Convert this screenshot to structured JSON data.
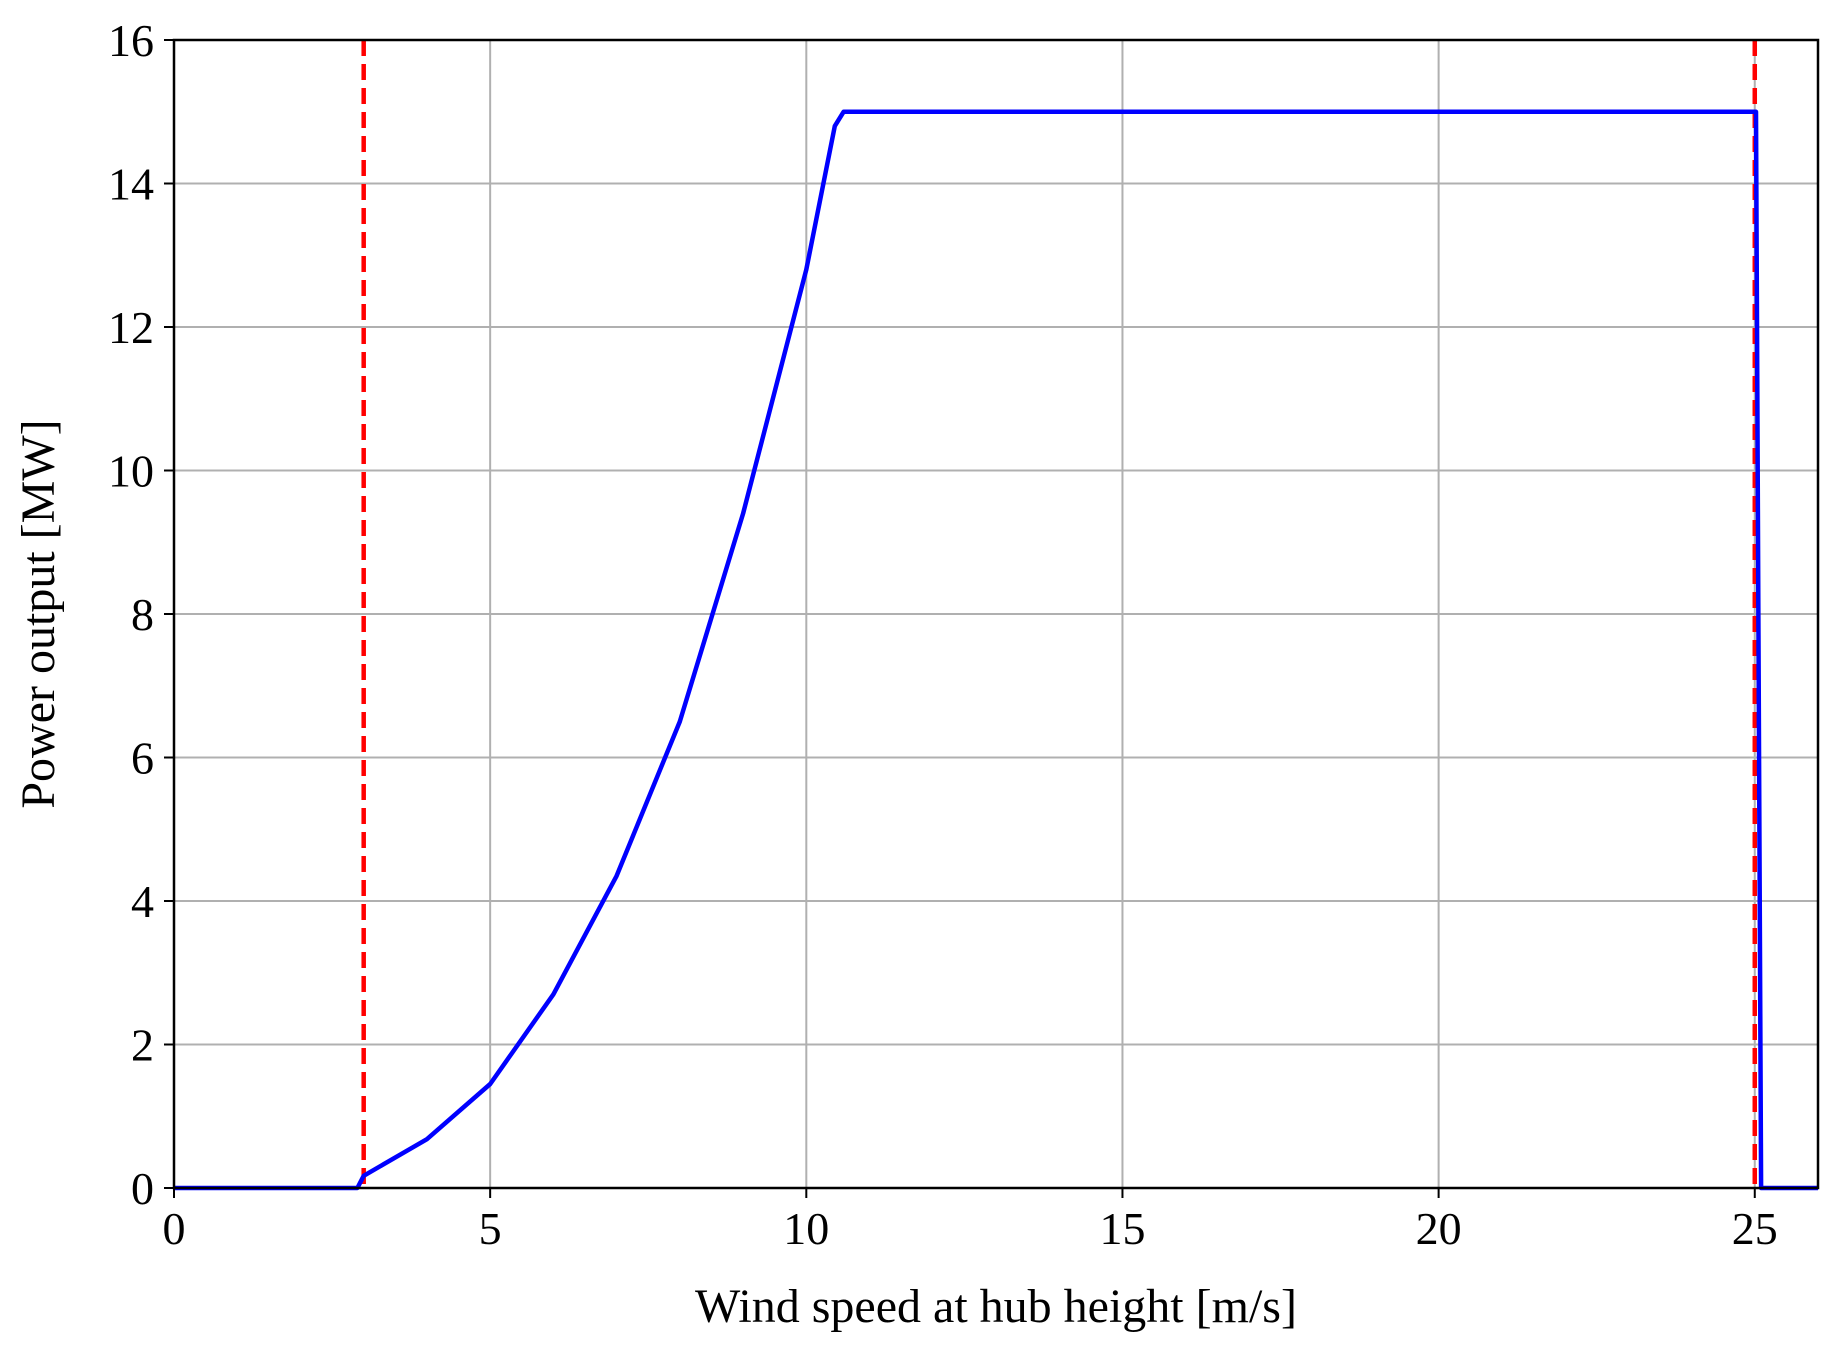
{
  "chart_data": {
    "type": "line",
    "title": "",
    "xlabel": "Wind speed at hub height [m/s]",
    "ylabel": "Power output [MW]",
    "xlim": [
      0,
      26
    ],
    "ylim": [
      0,
      16
    ],
    "xticks": [
      0,
      5,
      10,
      15,
      20,
      25
    ],
    "yticks": [
      0,
      2,
      4,
      6,
      8,
      10,
      12,
      14,
      16
    ],
    "grid": true,
    "series": [
      {
        "color": "#0000ff",
        "style": "solid",
        "x": [
          0,
          2.9,
          3.0,
          4.0,
          5.0,
          6.0,
          7.0,
          8.0,
          9.0,
          10.0,
          10.45,
          10.59,
          24.9,
          25.02,
          25.1,
          26
        ],
        "y": [
          0,
          0,
          0.17,
          0.68,
          1.45,
          2.7,
          4.35,
          6.5,
          9.4,
          12.8,
          14.8,
          15.0,
          15.0,
          15.0,
          0,
          0
        ]
      }
    ],
    "vlines": [
      {
        "x": 3,
        "color": "#ff0000",
        "style": "dashed"
      },
      {
        "x": 25,
        "color": "#ff0000",
        "style": "dashed"
      }
    ]
  }
}
